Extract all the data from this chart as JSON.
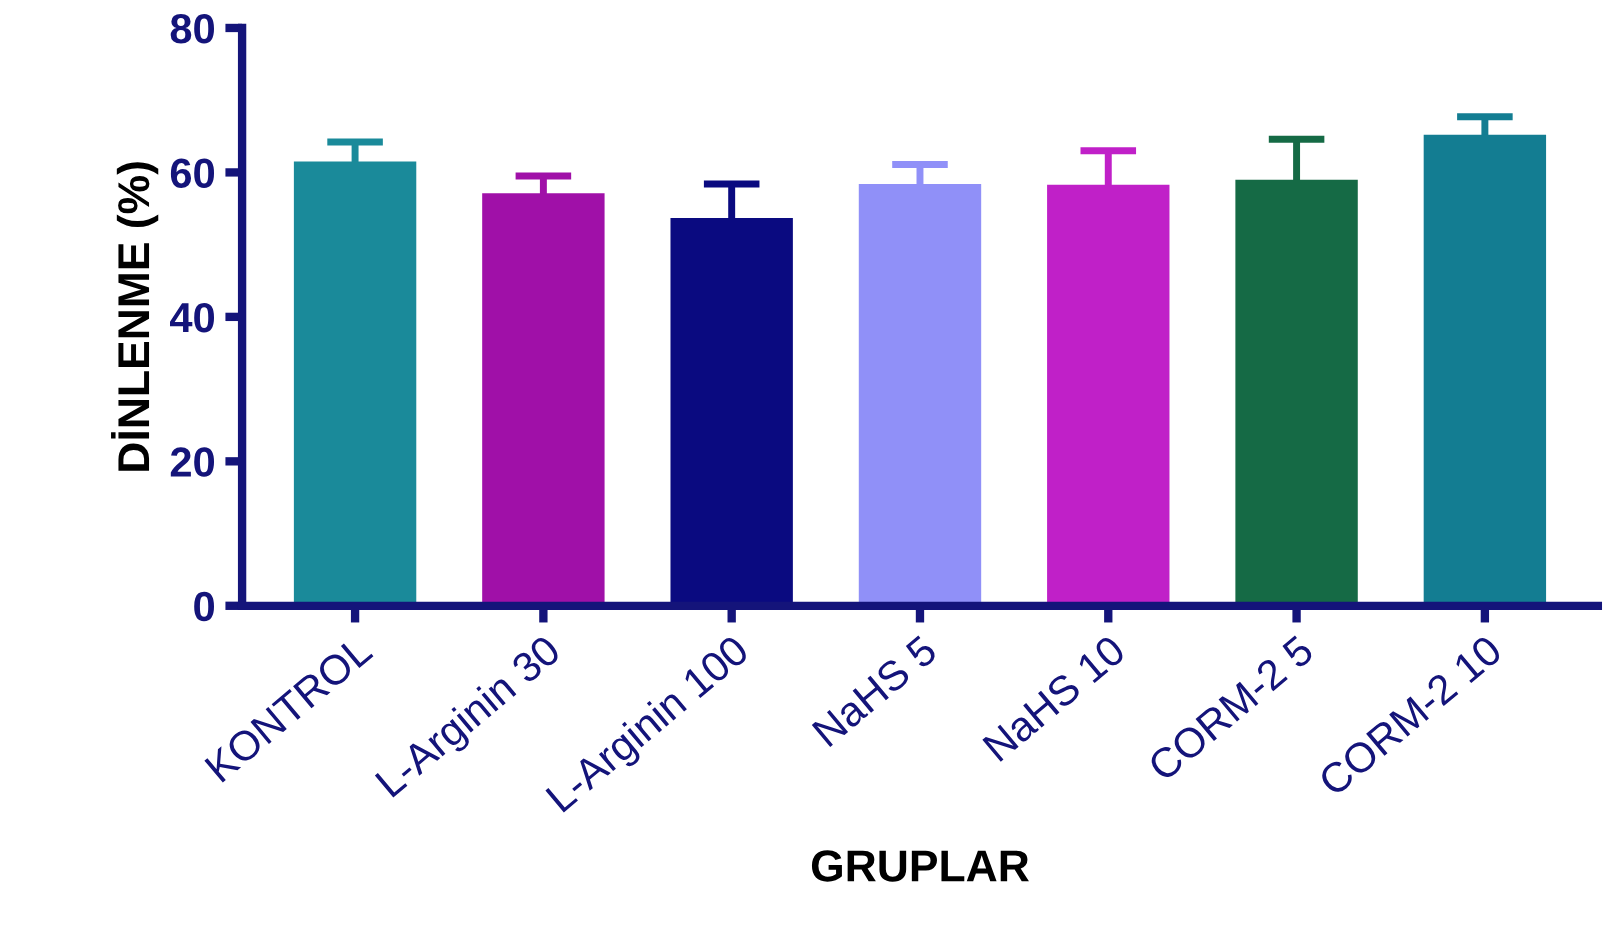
{
  "chart_data": {
    "type": "bar",
    "xlabel": "GRUPLAR",
    "ylabel": "DİNLENME (%)",
    "categories": [
      "KONTROL",
      "L-Arginin 30",
      "L-Arginin 100",
      "NaHS 5",
      "NaHS 10",
      "CORM-2 5",
      "CORM-2 10"
    ],
    "values": [
      61.5,
      57.1,
      53.7,
      58.4,
      58.3,
      59.0,
      65.2
    ],
    "errors": [
      2.7,
      2.4,
      4.7,
      2.7,
      4.7,
      5.6,
      2.5
    ],
    "colors": [
      "#1a8a9a",
      "#a010a8",
      "#0a0a80",
      "#9090f8",
      "#c020c8",
      "#156a45",
      "#137d92"
    ],
    "ylim": [
      0,
      80
    ],
    "yticks": [
      0,
      20,
      40,
      60,
      80
    ],
    "grid": false
  }
}
